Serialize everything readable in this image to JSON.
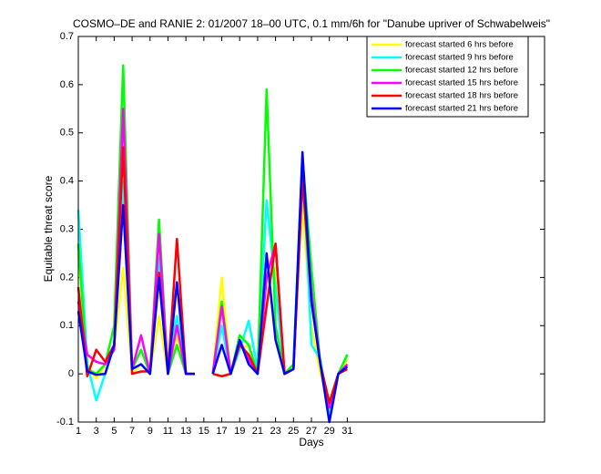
{
  "chart_data": {
    "type": "line",
    "title": "COSMO–DE and RANIE 2: 01/2007 18–00 UTC, 0.1 mm/6h for \"Danube upriver of Schwabelweis\"",
    "xlabel": "Days",
    "ylabel": "Equitable threat score",
    "x": [
      1,
      2,
      3,
      4,
      5,
      6,
      7,
      8,
      9,
      10,
      11,
      12,
      13,
      14,
      15,
      16,
      17,
      18,
      19,
      20,
      21,
      22,
      23,
      24,
      25,
      26,
      27,
      28,
      29,
      30,
      31
    ],
    "xlim": [
      1,
      53
    ],
    "ylim": [
      -0.1,
      0.7
    ],
    "xticks": [
      1,
      3,
      5,
      7,
      9,
      11,
      13,
      15,
      17,
      19,
      21,
      23,
      25,
      27,
      29,
      31
    ],
    "yticks": [
      -0.1,
      0,
      0.1,
      0.2,
      0.3,
      0.4,
      0.5,
      0.6,
      0.7
    ],
    "grid": false,
    "legend": "northeast",
    "series": [
      {
        "name": "forecast started 6 hrs before",
        "color": "#ffff00",
        "values": [
          0.25,
          0.02,
          -0.01,
          0.02,
          0.05,
          0.22,
          0.0,
          0.02,
          0.0,
          0.12,
          0.0,
          0.08,
          0,
          0,
          null,
          0,
          0.2,
          0,
          0.05,
          0.06,
          0,
          0.2,
          0.22,
          0,
          0.02,
          0.35,
          0.1,
          0,
          -0.06,
          0,
          0.03
        ]
      },
      {
        "name": "forecast started 9 hrs before",
        "color": "#00ffff",
        "values": [
          0.34,
          0.02,
          -0.055,
          0.0,
          0.06,
          0.4,
          0.01,
          0.02,
          0.0,
          0.24,
          0.02,
          0.12,
          0,
          0,
          null,
          0,
          0.1,
          0,
          0.05,
          0.11,
          0.01,
          0.36,
          0.18,
          0.0,
          0.02,
          0.45,
          0.06,
          0.03,
          -0.08,
          0,
          0.04
        ]
      },
      {
        "name": "forecast started 12 hrs before",
        "color": "#00ff00",
        "values": [
          0.27,
          0.01,
          0.0,
          0.02,
          0.1,
          0.64,
          0.01,
          0.05,
          0.0,
          0.32,
          0.0,
          0.06,
          0,
          0,
          null,
          0,
          0.15,
          0,
          0.08,
          0.06,
          0.0,
          0.59,
          0.1,
          0.0,
          0.02,
          0.45,
          0.22,
          0.02,
          -0.06,
          0,
          0.04
        ]
      },
      {
        "name": "forecast started 15 hrs before",
        "color": "#ff00ff",
        "values": [
          0.15,
          0.04,
          0.025,
          0.02,
          0.05,
          0.55,
          0.01,
          0.08,
          0.0,
          0.29,
          0.0,
          0.1,
          0,
          0,
          null,
          0,
          0.14,
          0,
          0.07,
          0.03,
          0,
          0.2,
          0.27,
          0,
          0.01,
          0.4,
          0.17,
          0.02,
          -0.07,
          0,
          0.02
        ]
      },
      {
        "name": "forecast started 18 hrs before",
        "color": "#ff0000",
        "values": [
          0.18,
          -0.005,
          0.05,
          0.025,
          0.06,
          0.47,
          0.0,
          0.005,
          0.005,
          0.21,
          0.0,
          0.28,
          0,
          0,
          null,
          0,
          -0.005,
          0.0,
          0.06,
          0.04,
          0,
          0.14,
          0.27,
          0,
          0.01,
          0.41,
          0.15,
          0.02,
          -0.06,
          0,
          0.01
        ]
      },
      {
        "name": "forecast started 21 hrs before",
        "color": "#0000ff",
        "values": [
          0.13,
          0.005,
          -0.002,
          0.0,
          0.06,
          0.35,
          0.01,
          0.02,
          0.0,
          0.2,
          0.0,
          0.19,
          0,
          0,
          null,
          0,
          0.06,
          0.0,
          0.07,
          0.02,
          0.0,
          0.25,
          0.07,
          0,
          0.01,
          0.46,
          0.15,
          0.02,
          -0.1,
          0,
          0.015
        ]
      }
    ]
  }
}
